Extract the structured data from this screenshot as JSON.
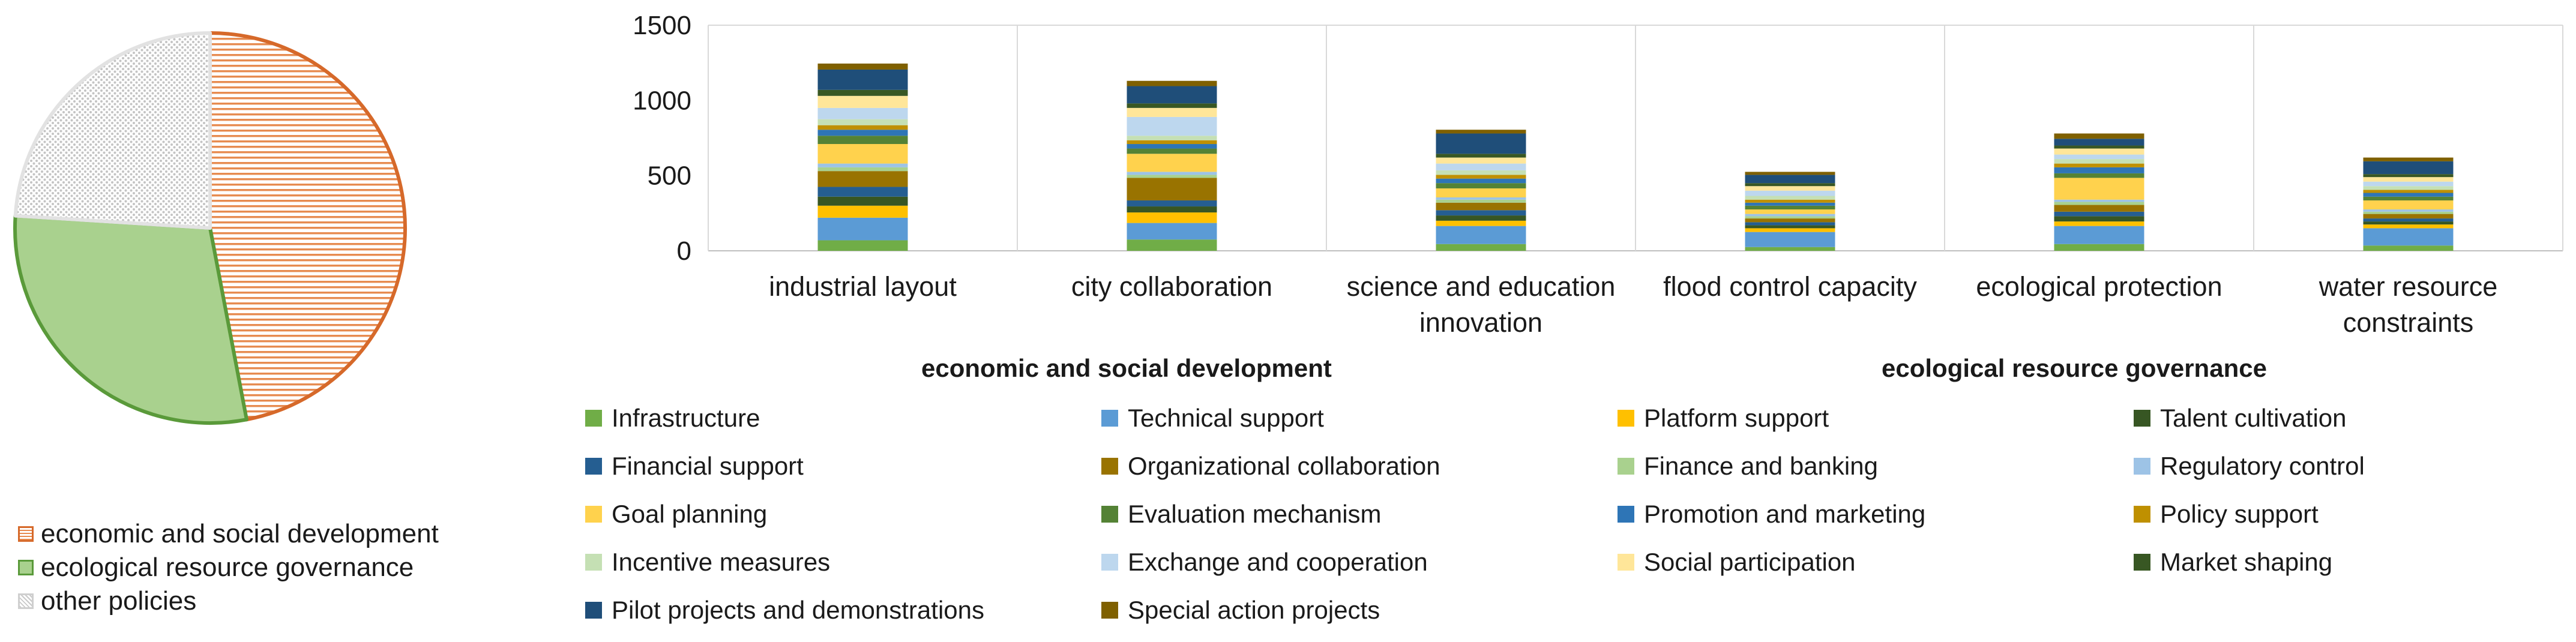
{
  "chart_data": [
    {
      "type": "pie",
      "slices": [
        {
          "name": "economic and social development",
          "value": 0.47,
          "color": "#e78b50",
          "border": "#d6692a",
          "pattern": "horizontal-lines"
        },
        {
          "name": "ecological resource governance",
          "value": 0.29,
          "color": "#a9d18e",
          "border": "#5a9a3a",
          "pattern": "solid"
        },
        {
          "name": "other policies",
          "value": 0.24,
          "color": "#d4d4d4",
          "border": "#d9d9d9",
          "pattern": "dotted"
        }
      ],
      "legend_position": "bottom"
    },
    {
      "type": "bar",
      "stacked": true,
      "categories": [
        "industrial layout",
        "city collaboration",
        "science and education innovation",
        "flood control capacity",
        "ecological protection",
        "water resource constraints"
      ],
      "category_lines": [
        [
          "industrial layout"
        ],
        [
          "city collaboration"
        ],
        [
          "science and education",
          "innovation"
        ],
        [
          "flood control capacity"
        ],
        [
          "ecological protection"
        ],
        [
          "water resource",
          "constraints"
        ]
      ],
      "ylim": [
        0,
        1500
      ],
      "yticks": [
        "0",
        "500",
        "1000",
        "1500"
      ],
      "grid": "vertical-separators",
      "legend_groups": [
        "economic and social development",
        "ecological resource governance"
      ],
      "series": [
        {
          "name": "Infrastructure",
          "color": "#70ad47",
          "values": [
            70,
            75,
            45,
            25,
            45,
            35
          ]
        },
        {
          "name": "Technical support",
          "color": "#5b9bd5",
          "values": [
            150,
            110,
            120,
            100,
            120,
            115
          ]
        },
        {
          "name": "Platform support",
          "color": "#ffc000",
          "values": [
            80,
            70,
            35,
            25,
            30,
            25
          ]
        },
        {
          "name": "Talent cultivation",
          "color": "#375623",
          "values": [
            60,
            40,
            35,
            20,
            35,
            20
          ]
        },
        {
          "name": "Financial support",
          "color": "#255e91",
          "values": [
            65,
            40,
            35,
            20,
            30,
            20
          ]
        },
        {
          "name": "Organizational collaboration",
          "color": "#997300",
          "values": [
            105,
            150,
            50,
            25,
            45,
            30
          ]
        },
        {
          "name": "Finance and banking",
          "color": "#a9d18e",
          "values": [
            25,
            20,
            20,
            15,
            20,
            15
          ]
        },
        {
          "name": "Regulatory control",
          "color": "#9dc3e6",
          "values": [
            25,
            20,
            15,
            15,
            15,
            15
          ]
        },
        {
          "name": "Goal planning",
          "color": "#ffd24d",
          "values": [
            130,
            120,
            60,
            30,
            145,
            60
          ]
        },
        {
          "name": "Evaluation mechanism",
          "color": "#548235",
          "values": [
            55,
            35,
            35,
            25,
            30,
            25
          ]
        },
        {
          "name": "Promotion and marketing",
          "color": "#2e75b6",
          "values": [
            40,
            30,
            30,
            20,
            40,
            25
          ]
        },
        {
          "name": "Policy support",
          "color": "#bf9000",
          "values": [
            30,
            25,
            25,
            20,
            25,
            20
          ]
        },
        {
          "name": "Incentive measures",
          "color": "#c5e0b4",
          "values": [
            40,
            30,
            30,
            25,
            30,
            25
          ]
        },
        {
          "name": "Exchange and cooperation",
          "color": "#bdd7ee",
          "values": [
            75,
            125,
            45,
            35,
            30,
            30
          ]
        },
        {
          "name": "Social participation",
          "color": "#ffe699",
          "values": [
            80,
            60,
            40,
            30,
            40,
            30
          ]
        },
        {
          "name": "Market shaping",
          "color": "#385723",
          "values": [
            40,
            30,
            25,
            20,
            20,
            20
          ]
        },
        {
          "name": "Pilot projects and demonstrations",
          "color": "#1f4e79",
          "values": [
            135,
            115,
            135,
            55,
            45,
            85
          ]
        },
        {
          "name": "Special action projects",
          "color": "#7f6000",
          "values": [
            40,
            35,
            25,
            20,
            35,
            25
          ]
        }
      ]
    }
  ]
}
